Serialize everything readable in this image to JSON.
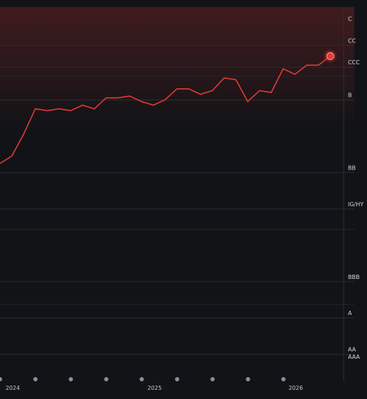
{
  "chart_data": {
    "type": "line",
    "x_tick_labels": [
      "2024",
      "2025",
      "2026"
    ],
    "y_scale": "credit rating bands, ordered from AAA (bottom) to C (top)",
    "rating_bands": [
      {
        "label": "C",
        "level": 10
      },
      {
        "label": "CC",
        "level": 9.4
      },
      {
        "label": "CCC",
        "level": 8.8
      },
      {
        "label": "B",
        "level": 7.9
      },
      {
        "label": "BB",
        "level": 5.9
      },
      {
        "label": "IG/HY",
        "level": 4.9
      },
      {
        "label": "BBB",
        "level": 2.9
      },
      {
        "label": "A",
        "level": 1.9
      },
      {
        "label": "AA",
        "level": 0.9
      },
      {
        "label": "AAA",
        "level": 0.7
      }
    ],
    "ylim": [
      0,
      10.3
    ],
    "series": [
      {
        "color": "#e53935",
        "x": [
          "2023-12",
          "2024-01",
          "2024-02",
          "2024-03",
          "2024-04",
          "2024-05",
          "2024-06",
          "2024-07",
          "2024-08",
          "2024-09",
          "2024-10",
          "2024-11",
          "2024-12",
          "2025-01",
          "2025-02",
          "2025-03",
          "2025-04",
          "2025-05",
          "2025-06",
          "2025-07",
          "2025-08",
          "2025-09",
          "2025-10",
          "2025-11",
          "2025-12",
          "2026-01",
          "2026-02",
          "2026-03",
          "2026-04"
        ],
        "values": [
          6.0,
          6.2,
          6.8,
          7.5,
          7.45,
          7.5,
          7.45,
          7.6,
          7.5,
          7.8,
          7.8,
          7.85,
          7.7,
          7.6,
          7.75,
          8.05,
          8.05,
          7.9,
          8.0,
          8.35,
          8.3,
          7.7,
          8.0,
          7.95,
          8.6,
          8.45,
          8.7,
          8.7,
          8.95
        ]
      }
    ],
    "latest_point_highlighted": true,
    "x_axis_markers": 9,
    "grid": "horizontal",
    "background_colors": {
      "page": "#121317",
      "risk_zone": "#e53935"
    }
  }
}
